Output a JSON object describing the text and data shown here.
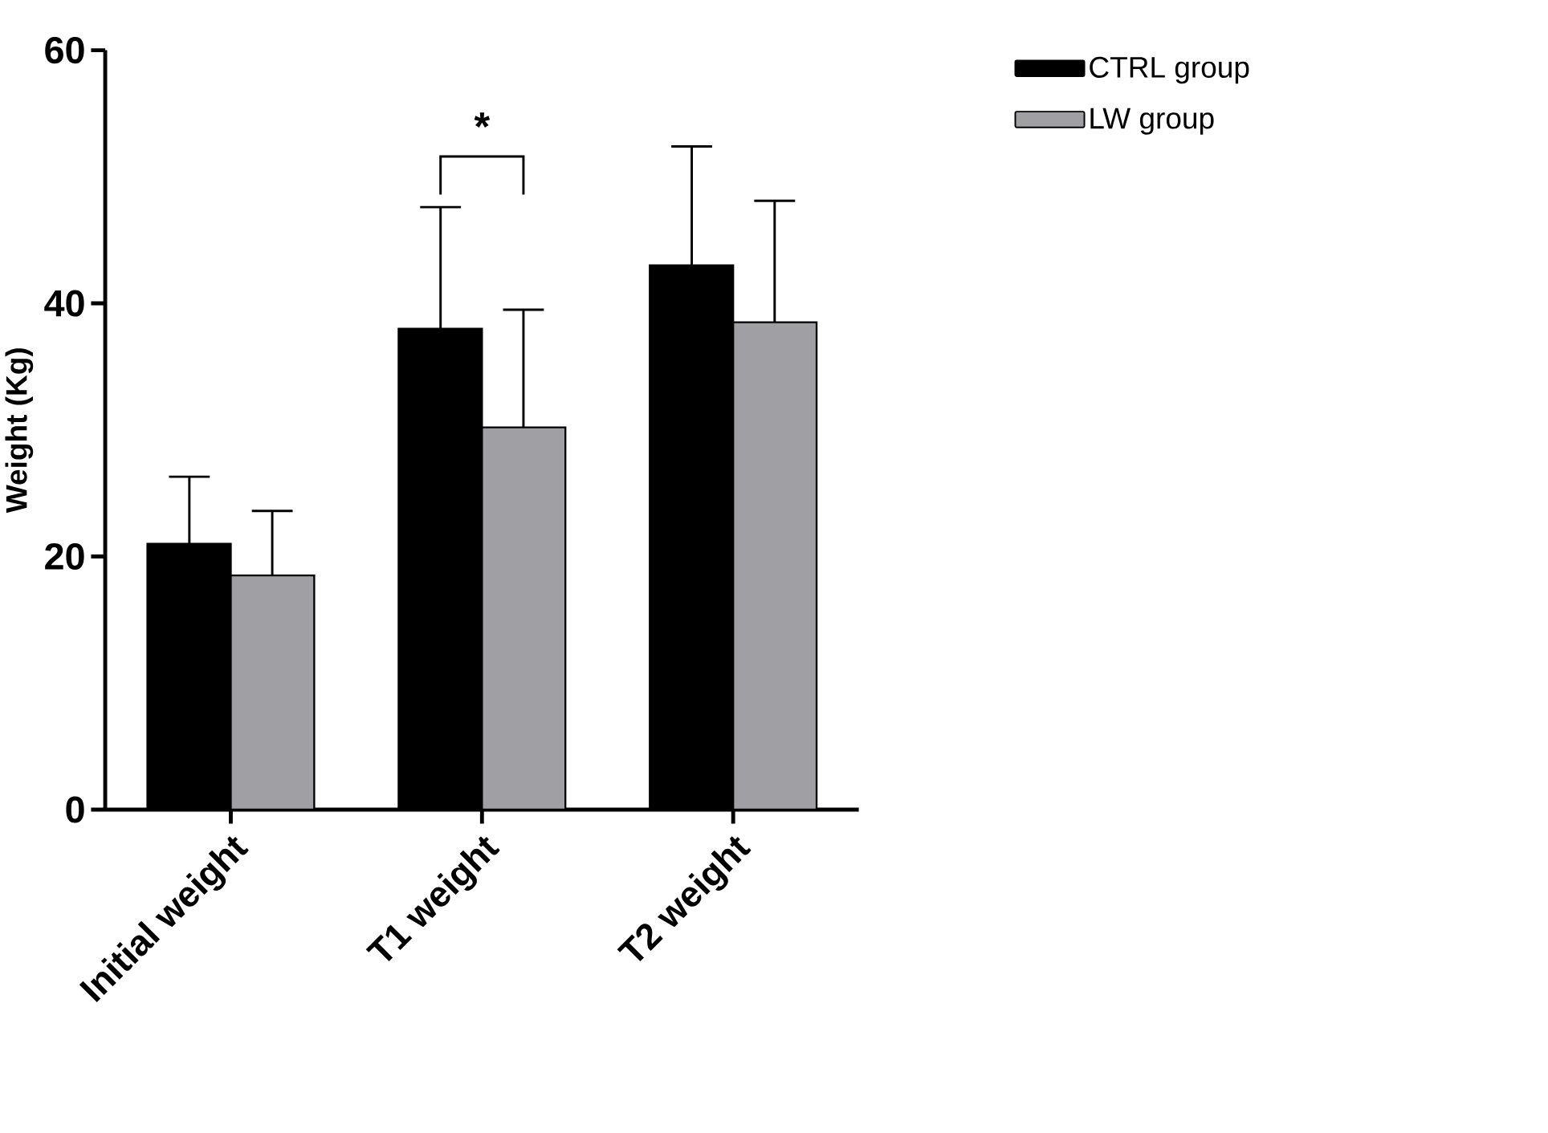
{
  "chart_data": {
    "type": "bar",
    "ylabel": "Weight (Kg)",
    "categories": [
      "Initial weight",
      "T1 weight",
      "T2 weight"
    ],
    "series": [
      {
        "name": "CTRL group",
        "color": "#000000",
        "values": [
          21.0,
          38.0,
          43.0
        ],
        "errors": [
          [
            21.0,
            26.3
          ],
          [
            38.0,
            47.6
          ],
          [
            43.0,
            52.4
          ]
        ]
      },
      {
        "name": "LW group",
        "color": "#a0a0a4",
        "values": [
          18.5,
          30.2,
          38.5
        ],
        "errors": [
          [
            18.5,
            23.6
          ],
          [
            30.2,
            39.5
          ],
          [
            38.5,
            48.1
          ]
        ]
      }
    ],
    "ylim": [
      0,
      60
    ],
    "yticks": [
      0,
      20,
      40,
      60
    ],
    "legend": "top right",
    "grid": false,
    "annotations": [
      "*"
    ]
  }
}
